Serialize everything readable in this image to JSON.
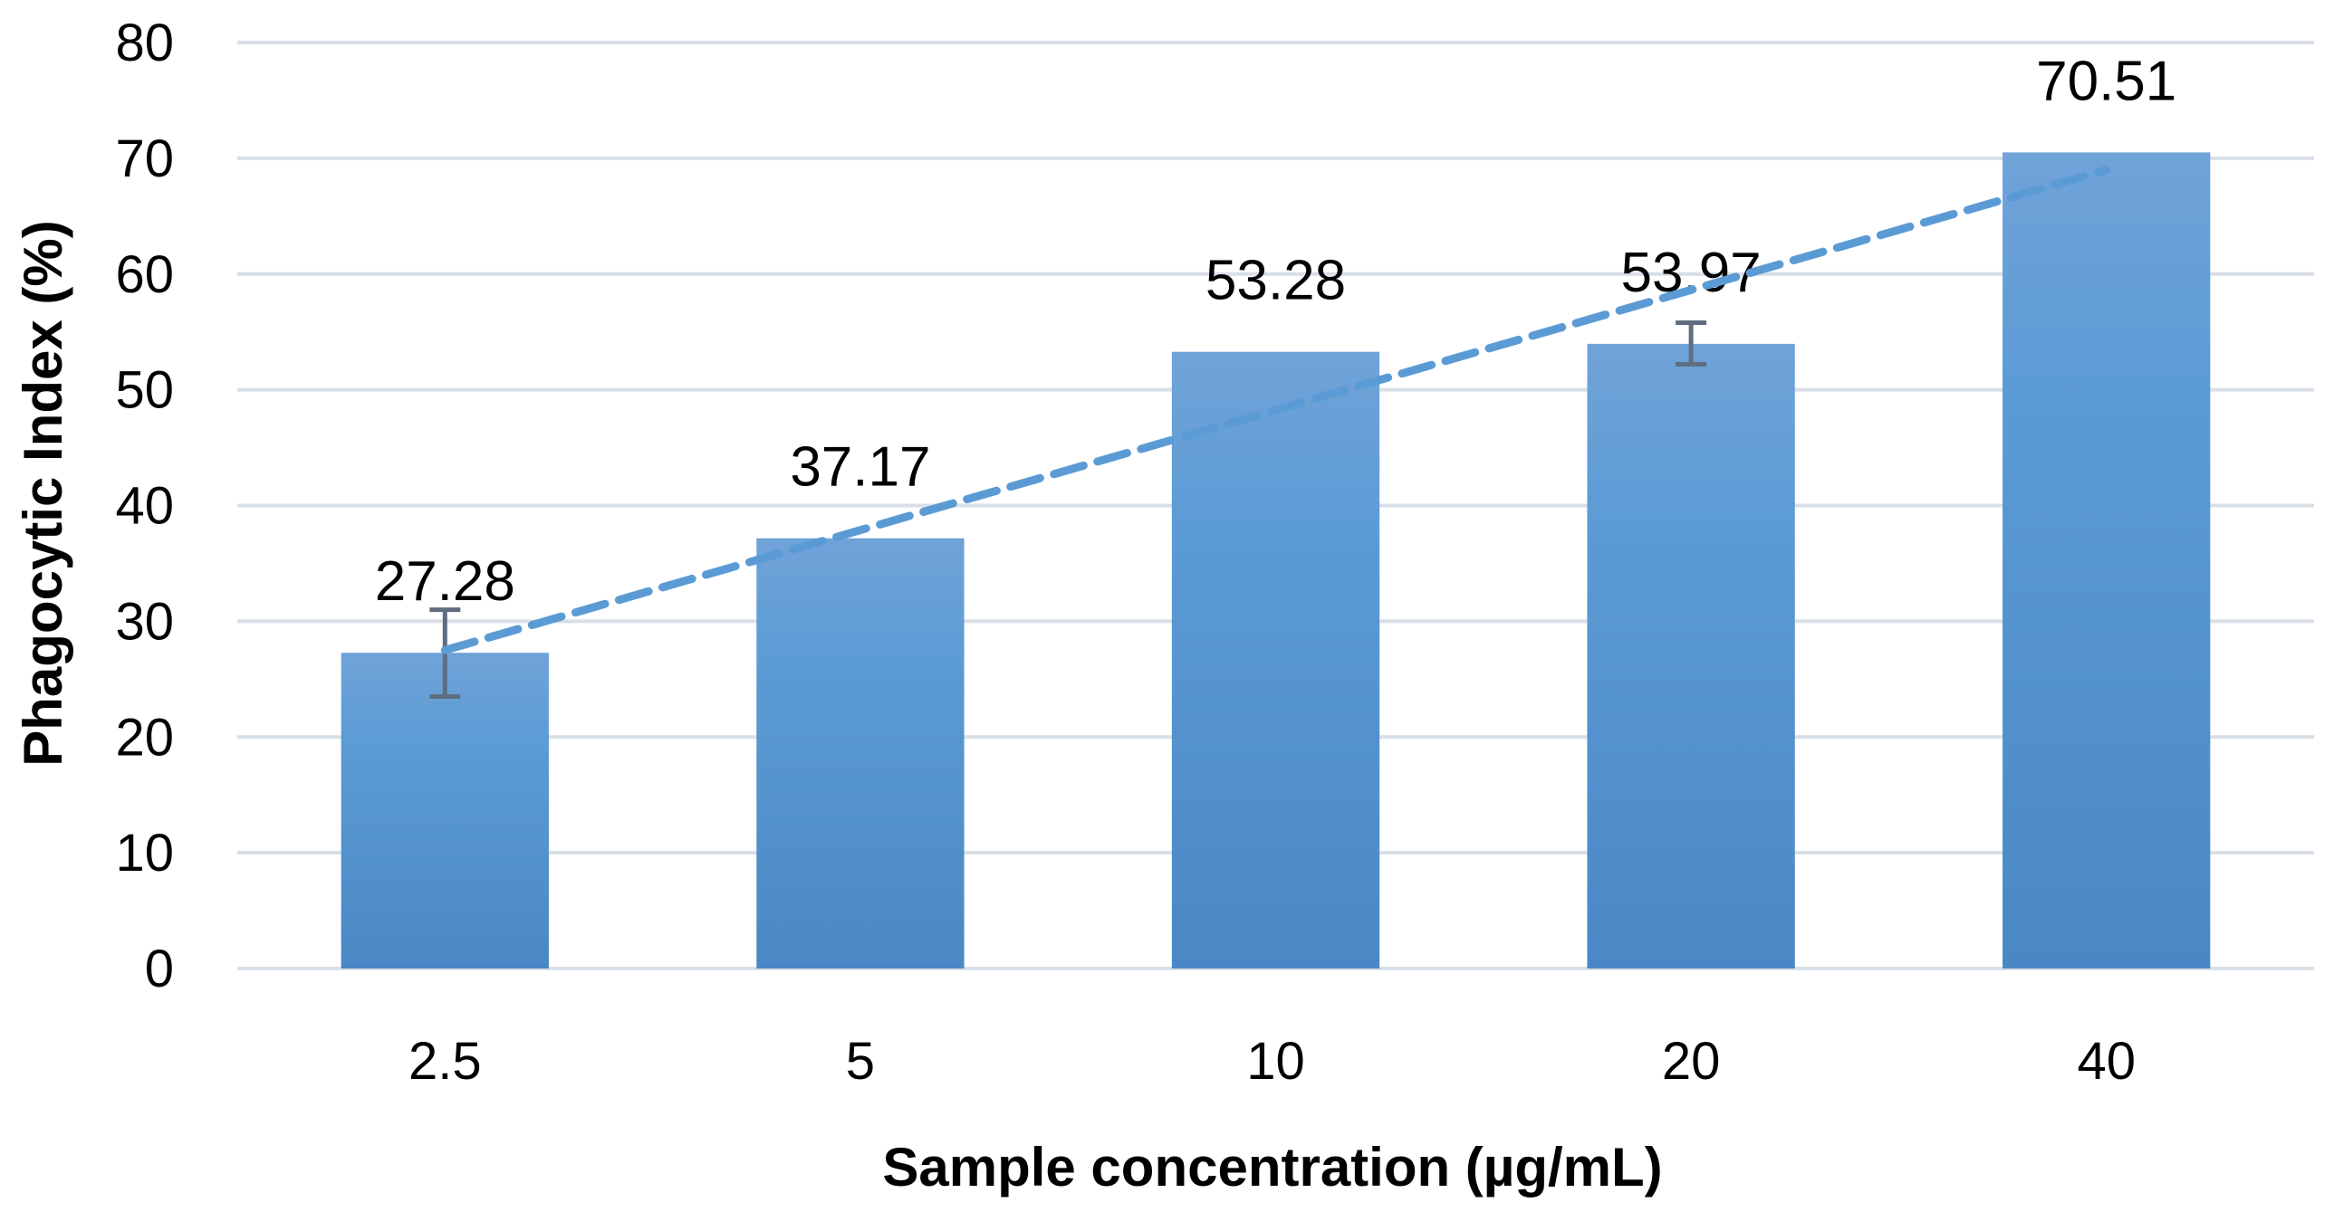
{
  "chart_data": {
    "type": "bar",
    "title": "",
    "xlabel": "Sample concentration (µg/mL)",
    "ylabel": "Phagocytic Index (%)",
    "categories": [
      "2.5",
      "5",
      "10",
      "20",
      "40"
    ],
    "values": [
      27.28,
      37.17,
      53.28,
      53.97,
      70.51
    ],
    "data_labels": [
      "27.28",
      "37.17",
      "53.28",
      "53.97",
      "70.51"
    ],
    "error_bars": [
      {
        "category": "2.5",
        "low": 23.5,
        "high": 31.0
      },
      {
        "category": "20",
        "low": 52.2,
        "high": 55.8
      }
    ],
    "trendline": {
      "type": "linear",
      "style": "dashed",
      "start": 27.5,
      "end": 69.0
    },
    "ylim": [
      0,
      80
    ],
    "yticks": [
      0,
      10,
      20,
      30,
      40,
      50,
      60,
      70,
      80
    ],
    "grid": true,
    "colors": {
      "bar_top": "#70a3d8",
      "bar_mid": "#5b9bd5",
      "bar_bottom": "#4a88c5",
      "trendline": "#5b9bd5",
      "grid": "#d9dfe6",
      "error_bar": "#5e6e80"
    }
  }
}
